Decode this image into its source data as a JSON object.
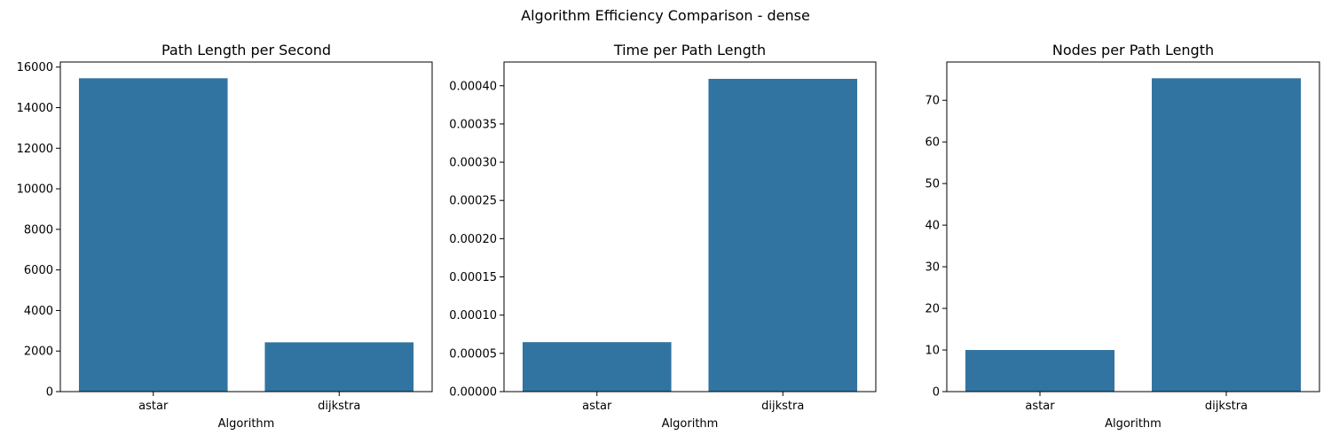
{
  "figure": {
    "suptitle": "Algorithm Efficiency Comparison - dense"
  },
  "colors": {
    "bar": "#3274a1",
    "background": "#ffffff",
    "axis": "#000000"
  },
  "chart_data": [
    {
      "type": "bar",
      "title": "Path Length per Second",
      "xlabel": "Algorithm",
      "ylabel": "",
      "categories": [
        "astar",
        "dijkstra"
      ],
      "values": [
        15450,
        2430
      ],
      "ylim": [
        0,
        16250
      ],
      "yticks": [
        0,
        2000,
        4000,
        6000,
        8000,
        10000,
        12000,
        14000,
        16000
      ],
      "ytick_labels": [
        "0",
        "2000",
        "4000",
        "6000",
        "8000",
        "10000",
        "12000",
        "14000",
        "16000"
      ],
      "grid": false
    },
    {
      "type": "bar",
      "title": "Time per Path Length",
      "xlabel": "Algorithm",
      "ylabel": "",
      "categories": [
        "astar",
        "dijkstra"
      ],
      "values": [
        6.47e-05,
        0.000409
      ],
      "ylim": [
        0,
        0.000431
      ],
      "yticks": [
        0,
        5e-05,
        0.0001,
        0.00015,
        0.0002,
        0.00025,
        0.0003,
        0.00035,
        0.0004
      ],
      "ytick_labels": [
        "0.00000",
        "0.00005",
        "0.00010",
        "0.00015",
        "0.00020",
        "0.00025",
        "0.00030",
        "0.00035",
        "0.00040"
      ],
      "grid": false
    },
    {
      "type": "bar",
      "title": "Nodes per Path Length",
      "xlabel": "Algorithm",
      "ylabel": "",
      "categories": [
        "astar",
        "dijkstra"
      ],
      "values": [
        10.0,
        75.3
      ],
      "ylim": [
        0,
        79.2
      ],
      "yticks": [
        0,
        10,
        20,
        30,
        40,
        50,
        60,
        70
      ],
      "ytick_labels": [
        "0",
        "10",
        "20",
        "30",
        "40",
        "50",
        "60",
        "70"
      ],
      "grid": false
    }
  ]
}
